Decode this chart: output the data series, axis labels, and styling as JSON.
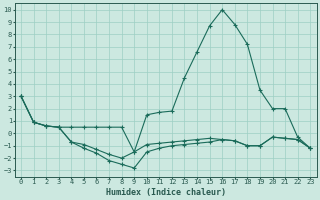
{
  "xlabel": "Humidex (Indice chaleur)",
  "bg_color": "#cce8e0",
  "grid_color": "#9ecfc4",
  "line_color": "#1a6b5a",
  "spine_color": "#2a5a50",
  "xlim": [
    -0.5,
    23.5
  ],
  "ylim": [
    -3.5,
    10.5
  ],
  "xticks": [
    0,
    1,
    2,
    3,
    4,
    5,
    6,
    7,
    8,
    9,
    10,
    11,
    12,
    13,
    14,
    15,
    16,
    17,
    18,
    19,
    20,
    21,
    22,
    23
  ],
  "yticks": [
    -3,
    -2,
    -1,
    0,
    1,
    2,
    3,
    4,
    5,
    6,
    7,
    8,
    9,
    10
  ],
  "line1_x": [
    0,
    1,
    2,
    3,
    4,
    5,
    6,
    7,
    8,
    9,
    10,
    11,
    12,
    13,
    14,
    15,
    16,
    17,
    18,
    19,
    20,
    21,
    22,
    23
  ],
  "line1_y": [
    3.0,
    0.9,
    0.6,
    0.5,
    0.5,
    0.5,
    0.5,
    0.5,
    0.5,
    -1.5,
    1.5,
    1.7,
    1.8,
    4.5,
    6.6,
    8.7,
    10.0,
    8.8,
    7.2,
    3.5,
    2.0,
    2.0,
    -0.3,
    -1.2
  ],
  "line2_x": [
    0,
    1,
    2,
    3,
    4,
    5,
    6,
    7,
    8,
    9,
    10,
    11,
    12,
    13,
    14,
    15,
    16,
    17,
    18,
    19,
    20,
    21,
    22,
    23
  ],
  "line2_y": [
    3.0,
    0.9,
    0.6,
    0.5,
    -0.7,
    -0.9,
    -1.3,
    -1.7,
    -2.0,
    -1.5,
    -0.9,
    -0.8,
    -0.7,
    -0.6,
    -0.5,
    -0.4,
    -0.5,
    -0.6,
    -1.0,
    -1.0,
    -0.3,
    -0.4,
    -0.5,
    -1.2
  ],
  "line3_x": [
    0,
    1,
    2,
    3,
    4,
    5,
    6,
    7,
    8,
    9,
    10,
    11,
    12,
    13,
    14,
    15,
    16,
    17,
    18,
    19,
    20,
    21,
    22,
    23
  ],
  "line3_y": [
    3.0,
    0.9,
    0.6,
    0.5,
    -0.7,
    -1.2,
    -1.6,
    -2.2,
    -2.5,
    -2.8,
    -1.5,
    -1.2,
    -1.0,
    -0.9,
    -0.8,
    -0.7,
    -0.5,
    -0.6,
    -1.0,
    -1.0,
    -0.3,
    -0.4,
    -0.5,
    -1.2
  ],
  "tick_fontsize": 5.0,
  "xlabel_fontsize": 6.0
}
